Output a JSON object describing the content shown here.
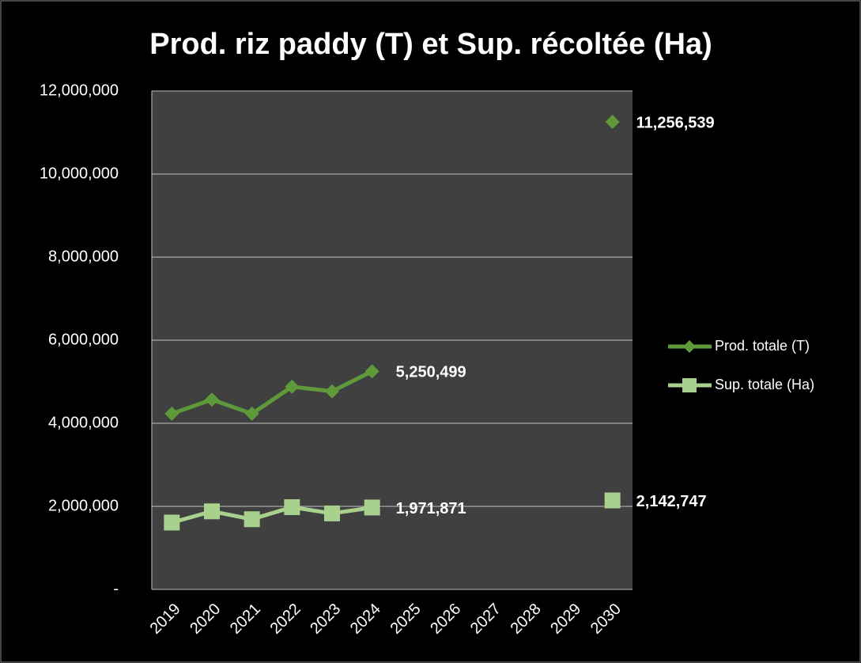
{
  "chart_data": {
    "type": "line",
    "title": "Prod. riz paddy (T) et Sup. récoltée (Ha)",
    "categories": [
      "2019",
      "2020",
      "2021",
      "2022",
      "2023",
      "2024",
      "2025",
      "2026",
      "2027",
      "2028",
      "2029",
      "2030"
    ],
    "series": [
      {
        "name": "Prod. totale (T)",
        "color": "#5f9a3a",
        "marker": "diamond",
        "values": [
          4230000,
          4570000,
          4230000,
          4880000,
          4770000,
          5250499,
          null,
          null,
          null,
          null,
          null,
          11256539
        ],
        "value_labels": [
          null,
          null,
          null,
          null,
          null,
          "5,250,499",
          null,
          null,
          null,
          null,
          null,
          "11,256,539"
        ]
      },
      {
        "name": "Sup. totale (Ha)",
        "color": "#a9d18e",
        "marker": "square",
        "values": [
          1610000,
          1880000,
          1690000,
          1980000,
          1830000,
          1971871,
          null,
          null,
          null,
          null,
          null,
          2142747
        ],
        "value_labels": [
          null,
          null,
          null,
          null,
          null,
          "1,971,871",
          null,
          null,
          null,
          null,
          null,
          "2,142,747"
        ]
      }
    ],
    "ylim": [
      0,
      12000000
    ],
    "yticks": [
      {
        "value": 0,
        "label": "-"
      },
      {
        "value": 2000000,
        "label": "2,000,000"
      },
      {
        "value": 4000000,
        "label": "4,000,000"
      },
      {
        "value": 6000000,
        "label": "6,000,000"
      },
      {
        "value": 8000000,
        "label": "8,000,000"
      },
      {
        "value": 10000000,
        "label": "10,000,000"
      },
      {
        "value": 12000000,
        "label": "12,000,000"
      }
    ],
    "grid": true,
    "legend": "right",
    "plot_background": "#404040"
  }
}
